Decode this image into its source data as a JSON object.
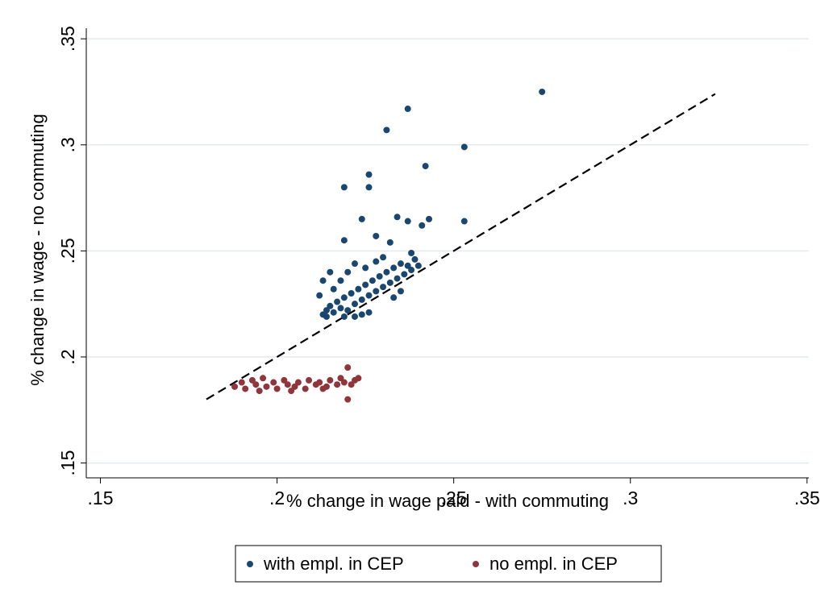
{
  "chart_data": {
    "type": "scatter",
    "x_label": "% change in wage paid - with commuting",
    "y_label": "% change in wage - no commuting",
    "xlim": [
      0.146,
      0.3505
    ],
    "ylim": [
      0.143,
      0.355
    ],
    "xticks": [
      {
        "value": 0.15,
        "label": ".15"
      },
      {
        "value": 0.2,
        "label": ".2"
      },
      {
        "value": 0.25,
        "label": ".25"
      },
      {
        "value": 0.3,
        "label": ".3"
      },
      {
        "value": 0.35,
        "label": ".35"
      }
    ],
    "yticks": [
      {
        "value": 0.15,
        "label": ".15"
      },
      {
        "value": 0.2,
        "label": ".2"
      },
      {
        "value": 0.25,
        "label": ".25"
      },
      {
        "value": 0.3,
        "label": ".3"
      },
      {
        "value": 0.35,
        "label": ".35"
      }
    ],
    "grid": true,
    "legend": "bottom",
    "reference_line": {
      "x": [
        0.18,
        0.324
      ],
      "y": [
        0.18,
        0.324
      ]
    },
    "series": [
      {
        "name": "with empl. in CEP",
        "color": "#1a476f",
        "x": [
          0.275,
          0.237,
          0.231,
          0.253,
          0.242,
          0.226,
          0.219,
          0.226,
          0.224,
          0.234,
          0.243,
          0.253,
          0.237,
          0.241,
          0.219,
          0.228,
          0.232,
          0.238,
          0.213,
          0.215,
          0.213,
          0.214,
          0.215,
          0.216,
          0.217,
          0.218,
          0.219,
          0.22,
          0.221,
          0.222,
          0.223,
          0.224,
          0.225,
          0.226,
          0.227,
          0.228,
          0.229,
          0.23,
          0.231,
          0.232,
          0.233,
          0.234,
          0.235,
          0.236,
          0.237,
          0.238,
          0.239,
          0.24,
          0.216,
          0.218,
          0.22,
          0.222,
          0.224,
          0.226,
          0.214,
          0.219,
          0.228,
          0.23,
          0.212,
          0.233,
          0.235,
          0.222,
          0.225
        ],
        "values": [
          0.325,
          0.317,
          0.307,
          0.299,
          0.29,
          0.286,
          0.28,
          0.28,
          0.265,
          0.266,
          0.265,
          0.264,
          0.264,
          0.262,
          0.255,
          0.257,
          0.254,
          0.249,
          0.236,
          0.24,
          0.22,
          0.222,
          0.224,
          0.221,
          0.226,
          0.223,
          0.228,
          0.222,
          0.23,
          0.225,
          0.232,
          0.227,
          0.234,
          0.229,
          0.236,
          0.231,
          0.238,
          0.233,
          0.24,
          0.235,
          0.242,
          0.237,
          0.244,
          0.239,
          0.243,
          0.241,
          0.246,
          0.243,
          0.232,
          0.236,
          0.24,
          0.219,
          0.22,
          0.221,
          0.219,
          0.219,
          0.245,
          0.247,
          0.229,
          0.228,
          0.231,
          0.244,
          0.242
        ]
      },
      {
        "name": "no empl. in CEP",
        "color": "#90353b",
        "x": [
          0.188,
          0.19,
          0.191,
          0.193,
          0.194,
          0.196,
          0.197,
          0.199,
          0.2,
          0.202,
          0.203,
          0.205,
          0.206,
          0.208,
          0.209,
          0.211,
          0.212,
          0.214,
          0.215,
          0.217,
          0.218,
          0.219,
          0.221,
          0.222,
          0.223,
          0.22,
          0.22,
          0.195,
          0.204,
          0.213
        ],
        "values": [
          0.186,
          0.188,
          0.185,
          0.189,
          0.187,
          0.19,
          0.186,
          0.188,
          0.185,
          0.189,
          0.187,
          0.186,
          0.188,
          0.185,
          0.189,
          0.187,
          0.188,
          0.186,
          0.189,
          0.187,
          0.19,
          0.188,
          0.187,
          0.189,
          0.19,
          0.18,
          0.195,
          0.184,
          0.184,
          0.185
        ]
      }
    ]
  }
}
